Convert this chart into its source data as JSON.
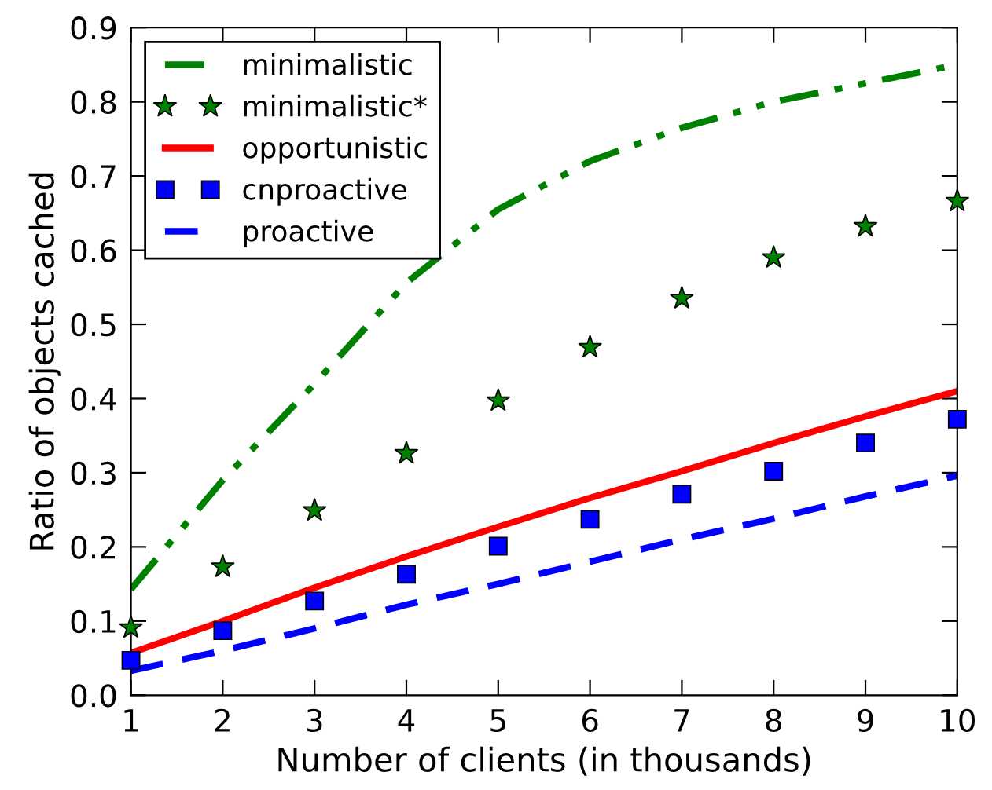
{
  "chart_data": {
    "type": "line",
    "xlabel": "Number of clients (in thousands)",
    "ylabel": "Ratio of objects cached",
    "x": [
      1,
      2,
      3,
      4,
      5,
      6,
      7,
      8,
      9,
      10
    ],
    "series": [
      {
        "name": "minimalistic",
        "color": "#008000",
        "line_style": "dashdot",
        "values": [
          0.143,
          0.29,
          0.42,
          0.556,
          0.655,
          0.72,
          0.765,
          0.8,
          0.825,
          0.85
        ]
      },
      {
        "name": "minimalistic*",
        "type": "scatter",
        "color": "#008000",
        "marker": "star",
        "values": [
          0.091,
          0.173,
          0.249,
          0.326,
          0.397,
          0.469,
          0.535,
          0.59,
          0.632,
          0.666
        ]
      },
      {
        "name": "opportunistic",
        "color": "#ff0000",
        "line_style": "solid",
        "values": [
          0.057,
          0.1,
          0.145,
          0.187,
          0.227,
          0.266,
          0.302,
          0.34,
          0.376,
          0.41
        ]
      },
      {
        "name": "cnproactive",
        "type": "scatter",
        "color": "#0000ff",
        "marker": "square",
        "values": [
          0.047,
          0.087,
          0.127,
          0.163,
          0.201,
          0.237,
          0.271,
          0.302,
          0.34,
          0.372
        ]
      },
      {
        "name": "proactive",
        "color": "#0000ff",
        "line_style": "dashed",
        "values": [
          0.033,
          0.06,
          0.09,
          0.122,
          0.15,
          0.18,
          0.21,
          0.238,
          0.268,
          0.296
        ]
      }
    ],
    "xlim": [
      1,
      10
    ],
    "xticks": [
      1,
      2,
      3,
      4,
      5,
      6,
      7,
      8,
      9,
      10
    ],
    "ylim": [
      0,
      0.9
    ],
    "yticks": [
      {
        "value": 0,
        "label": "0.0"
      },
      0.1,
      0.2,
      0.3,
      0.4,
      0.5,
      0.6,
      0.7,
      0.8,
      0.9
    ],
    "grid": false,
    "legend": "top left"
  }
}
